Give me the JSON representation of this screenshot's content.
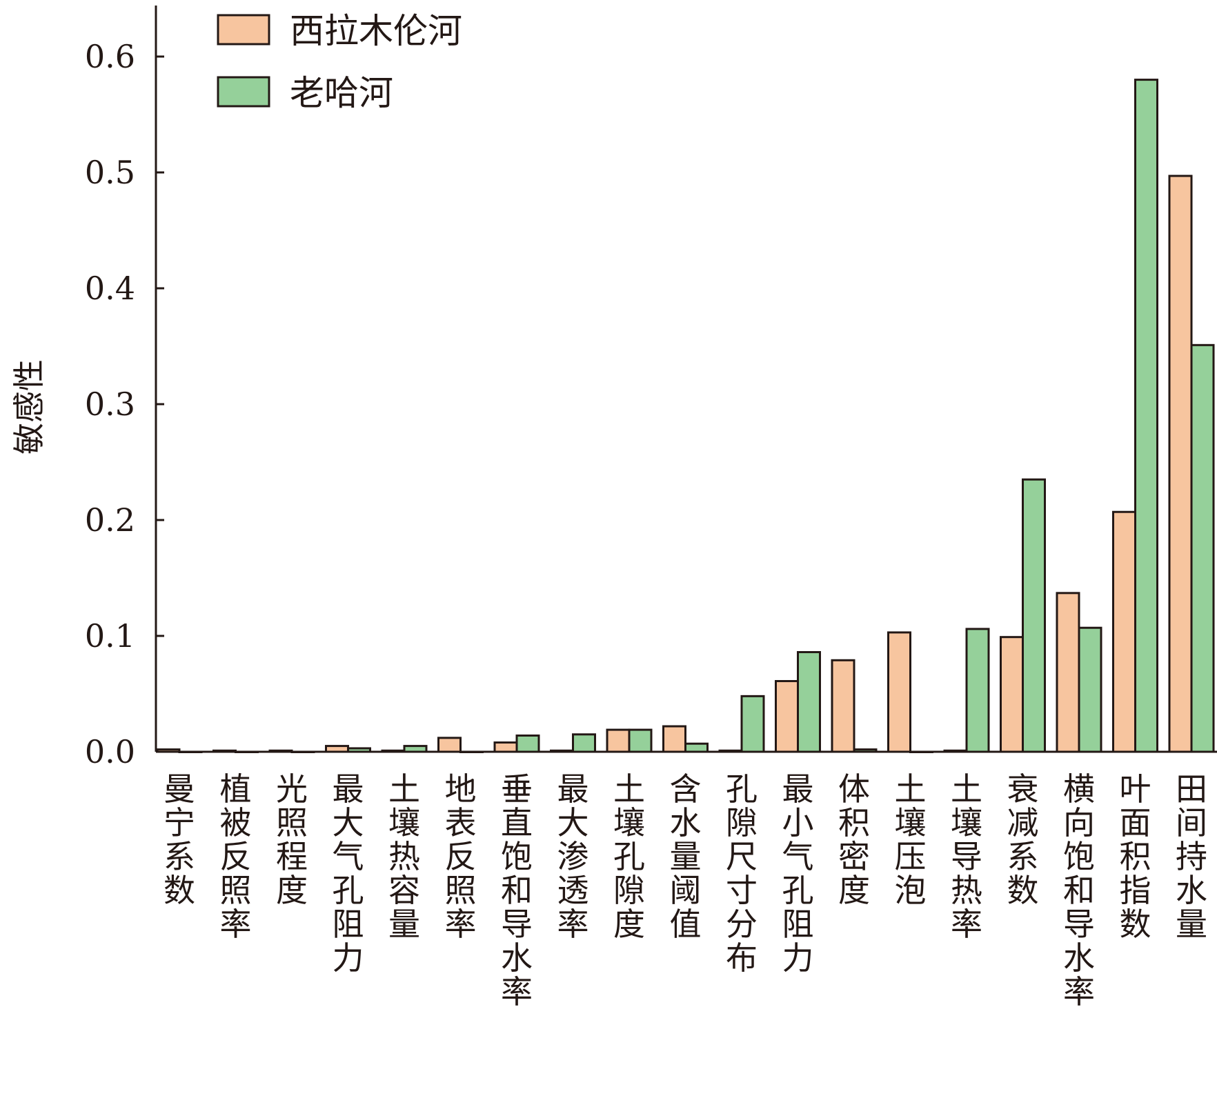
{
  "chart_data": {
    "type": "bar",
    "title": "",
    "xlabel": "",
    "ylabel": "敏感性",
    "ylim": [
      0,
      0.65
    ],
    "yticks": [
      "0.0",
      "0.1",
      "0.2",
      "0.3",
      "0.4",
      "0.5",
      "0.6"
    ],
    "grid": false,
    "legend_position": "top-left",
    "categories": [
      "曼宁系数",
      "植被反照率",
      "光照程度",
      "最大气孔阻力",
      "土壤热容量",
      "地表反照率",
      "垂直饱和导水率",
      "最大渗透率",
      "土壤孔隙度",
      "含水量阈值",
      "孔隙尺寸分布",
      "最小气孔阻力",
      "体积密度",
      "土壤压泡",
      "土壤导热率",
      "衰减系数",
      "横向饱和导水率",
      "叶面积指数",
      "田间持水量"
    ],
    "series": [
      {
        "name": "西拉木伦河",
        "color": "#f7c59f",
        "values": [
          0.002,
          0.001,
          0.001,
          0.005,
          0.001,
          0.012,
          0.008,
          0.001,
          0.019,
          0.022,
          0.001,
          0.061,
          0.079,
          0.103,
          0.001,
          0.099,
          0.137,
          0.207,
          0.497
        ]
      },
      {
        "name": "老哈河",
        "color": "#95d09a",
        "values": [
          0.0,
          0.0,
          0.0,
          0.003,
          0.005,
          0.0,
          0.014,
          0.015,
          0.019,
          0.007,
          0.048,
          0.086,
          0.002,
          0.0,
          0.106,
          0.235,
          0.107,
          0.58,
          0.351
        ]
      }
    ]
  }
}
